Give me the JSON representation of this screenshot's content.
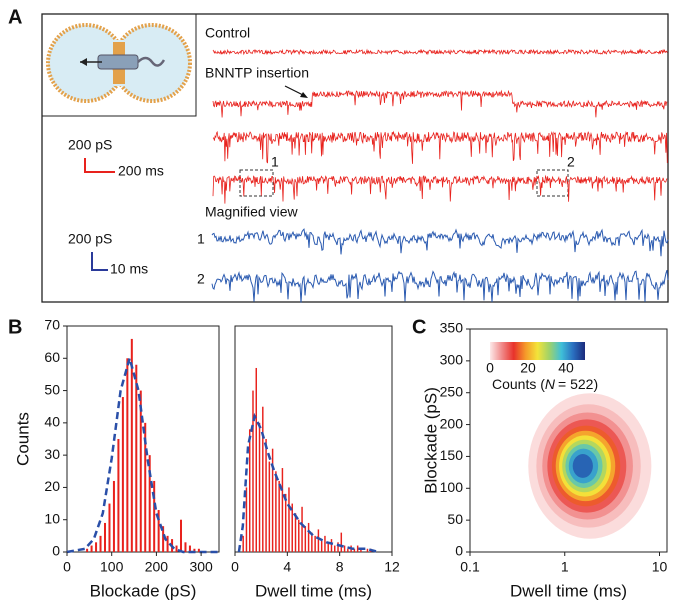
{
  "panel_labels": [
    "A",
    "B",
    "C"
  ],
  "panel_a": {
    "control": "Control",
    "insertion": "BNNTP insertion",
    "magnified": "Magnified view",
    "box1": "1",
    "box2": "2",
    "row1": "1",
    "row2": "2",
    "scale_red": {
      "y": "200 pS",
      "x": "200 ms"
    },
    "scale_blue": {
      "y": "200 pS",
      "x": "10 ms"
    }
  },
  "chart_data": [
    {
      "type": "histogram",
      "x_label": "Blockade (pS)",
      "y_label": "Counts",
      "color": "#e8221d",
      "fit_color": "#2a4fa8",
      "bins": [
        40,
        50,
        60,
        70,
        80,
        90,
        100,
        110,
        120,
        130,
        140,
        150,
        160,
        170,
        180,
        190,
        200,
        210,
        220,
        230,
        240,
        250,
        260,
        270,
        280,
        290,
        300
      ],
      "counts": [
        1,
        2,
        3,
        5,
        9,
        15,
        22,
        35,
        48,
        60,
        66,
        58,
        50,
        40,
        30,
        22,
        13,
        8,
        5,
        4,
        2,
        10,
        3,
        2,
        1,
        1
      ],
      "fit": {
        "x": [
          0,
          40,
          60,
          80,
          100,
          120,
          140,
          160,
          180,
          200,
          220,
          240,
          260,
          280,
          340
        ],
        "values": [
          0,
          1,
          4,
          12,
          29,
          50,
          60,
          50,
          29,
          12,
          4,
          1,
          0,
          0,
          0
        ]
      },
      "xlim": [
        0,
        340
      ],
      "xticks": [
        0,
        100,
        200,
        300
      ],
      "ylim": [
        0,
        70
      ],
      "yticks": [
        0,
        10,
        20,
        30,
        40,
        50,
        60,
        70
      ]
    },
    {
      "type": "histogram",
      "x_label": "Dwell time (ms)",
      "color": "#e8221d",
      "fit_color": "#2a4fa8",
      "bins": [
        0.5,
        0.75,
        1,
        1.25,
        1.5,
        1.75,
        2,
        2.25,
        2.5,
        2.75,
        3,
        3.25,
        3.5,
        3.75,
        4,
        4.25,
        4.5,
        4.75,
        5,
        5.25,
        5.5,
        5.75,
        6,
        6.25,
        6.5,
        6.75,
        7,
        7.25,
        7.5,
        7.75,
        8,
        8.25,
        8.5,
        8.75,
        9,
        9.25,
        9.5,
        9.75,
        10,
        10.25,
        10.5
      ],
      "counts": [
        5,
        20,
        38,
        50,
        57,
        40,
        45,
        35,
        28,
        32,
        25,
        22,
        26,
        18,
        20,
        15,
        12,
        10,
        14,
        8,
        9,
        6,
        5,
        7,
        4,
        5,
        3,
        4,
        2,
        3,
        6,
        2,
        1,
        2,
        1,
        2,
        1,
        0,
        1,
        1
      ],
      "fit": {
        "x": [
          0.3,
          0.6,
          1,
          1.5,
          2,
          2.5,
          3,
          4,
          5,
          6,
          7,
          8,
          9,
          10,
          11
        ],
        "values": [
          0,
          8,
          33,
          42,
          38,
          31,
          25,
          15,
          9,
          5,
          3,
          2,
          1,
          1,
          0
        ]
      },
      "xlim": [
        0,
        12
      ],
      "xticks": [
        0,
        4,
        8,
        12
      ],
      "ylim": [
        0,
        70
      ]
    },
    {
      "type": "contour",
      "x_label": "Dwell time (ms)",
      "y_label": "Blockade (pS)",
      "log_x": true,
      "xlim": [
        0.1,
        12
      ],
      "xticks": [
        0.1,
        1,
        10
      ],
      "ylim": [
        0,
        350
      ],
      "yticks": [
        0,
        50,
        100,
        150,
        200,
        250,
        300,
        350
      ],
      "center": [
        1.5,
        135
      ],
      "levels": [
        1,
        3,
        6,
        10,
        15,
        20,
        25,
        30,
        35,
        40,
        45
      ],
      "colorbar": {
        "lim": [
          0,
          50
        ],
        "ticks": [
          0,
          20,
          40
        ],
        "colors": [
          "#fde9e9",
          "#f08a8a",
          "#e8322b",
          "#f59a2a",
          "#f3e43a",
          "#9fd26a",
          "#3fc0d8",
          "#2a6fc0",
          "#1b2a7c"
        ],
        "label": [
          "Counts (",
          "N",
          "= 522)"
        ]
      }
    }
  ]
}
